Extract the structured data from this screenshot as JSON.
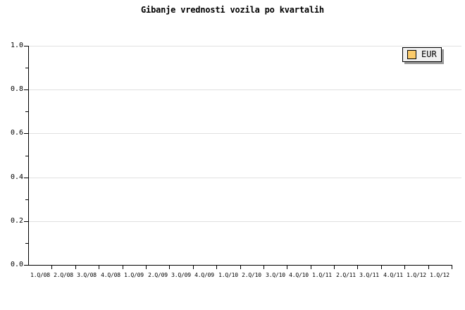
{
  "chart_data": {
    "type": "line",
    "title": "Gibanje vrednosti vozila po kvartalih",
    "xlabel": "",
    "ylabel": "",
    "categories": [
      "1.Q/08",
      "2.Q/08",
      "3.Q/08",
      "4.Q/08",
      "1.Q/09",
      "2.Q/09",
      "3.Q/09",
      "4.Q/09",
      "1.Q/10",
      "2.Q/10",
      "3.Q/10",
      "4.Q/10",
      "1.Q/11",
      "2.Q/11",
      "3.Q/11",
      "4.Q/11",
      "1.Q/12",
      "1.Q/12"
    ],
    "series": [
      {
        "name": "EUR",
        "values": []
      }
    ],
    "ylim": [
      0.0,
      1.0
    ],
    "ytick_labels": [
      "1.0",
      "0.8",
      "0.6",
      "0.4",
      "0.2",
      "0.0"
    ],
    "ytick_major_step": 0.2,
    "ytick_minor_step": 0.1,
    "grid": "horizontal-major",
    "plot_area_empty": true,
    "legend": {
      "position": "top-right",
      "entries": [
        {
          "label": "EUR",
          "swatch_color": "#FBCB6B"
        }
      ]
    },
    "colors": {
      "background": "#FFFFFF",
      "axis": "#000000",
      "text": "#000000",
      "grid": "#E0E0E0",
      "legend_fill": "#F0F0F0",
      "legend_border": "#000000",
      "legend_shadow": "#999999"
    }
  }
}
